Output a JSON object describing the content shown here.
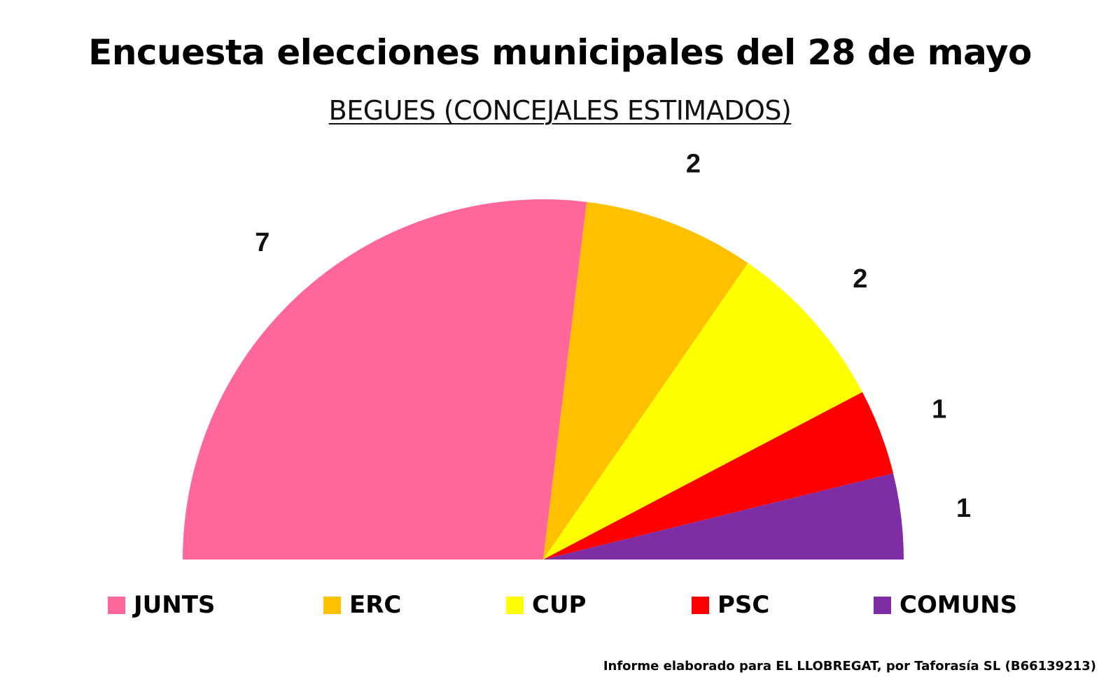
{
  "title": "Encuesta elecciones municipales del 28 de mayo",
  "subtitle": "BEGUES (CONCEJALES ESTIMADOS)",
  "footer": "Informe elaborado para EL LLOBREGAT, por Taforasía SL (B66139213)",
  "chart_data": {
    "type": "pie",
    "variant": "half-donut (parliament semicircle)",
    "title": "Encuesta elecciones municipales del 28 de mayo",
    "subtitle": "BEGUES (CONCEJALES ESTIMADOS)",
    "total_seats": 13,
    "legend_position": "bottom",
    "series": [
      {
        "name": "JUNTS",
        "value": 7,
        "label": "7",
        "color": "#FF6699"
      },
      {
        "name": "ERC",
        "value": 2,
        "label": "2",
        "color": "#FFC000"
      },
      {
        "name": "CUP",
        "value": 2,
        "label": "2",
        "color": "#FFFF00"
      },
      {
        "name": "PSC",
        "value": 1,
        "label": "1",
        "color": "#FF0000"
      },
      {
        "name": "COMUNS",
        "value": 1,
        "label": "1",
        "color": "#7F2DA5"
      }
    ]
  }
}
